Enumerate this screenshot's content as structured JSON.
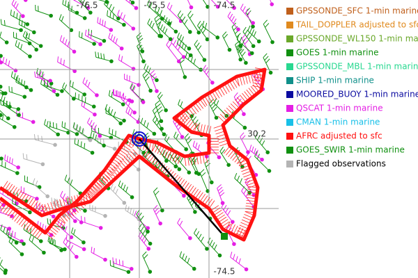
{
  "map": {
    "grid_labels": {
      "top": [
        "-76.5",
        "-75.5",
        "-74.5"
      ],
      "right": "30.2",
      "bottom": "-74.5"
    },
    "legend": [
      {
        "label": "GPSSONDE_SFC 1-min marine",
        "color": "#c0601c",
        "text_color": "#c0601c"
      },
      {
        "label": "TAIL_DOPPLER adjusted to sfc",
        "color": "#e08a1e",
        "text_color": "#e08a1e"
      },
      {
        "label": "GPSSONDE_WL150 1-min marine",
        "color": "#6aa82a",
        "text_color": "#6aa82a"
      },
      {
        "label": "GOES 1-min marine",
        "color": "#109010",
        "text_color": "#109010"
      },
      {
        "label": "GPSSONDE_MBL 1-min marine",
        "color": "#28d890",
        "text_color": "#28d890"
      },
      {
        "label": "SHIP 1-min marine",
        "color": "#10908a",
        "text_color": "#10908a"
      },
      {
        "label": "MOORED_BUOY 1-min marine",
        "color": "#0a0aa0",
        "text_color": "#0a0aa0"
      },
      {
        "label": "QSCAT 1-min marine",
        "color": "#e41ee4",
        "text_color": "#e41ee4"
      },
      {
        "label": "CMAN 1-min marine",
        "color": "#18c0e8",
        "text_color": "#18c0e8"
      },
      {
        "label": "AFRC adjusted to sfc",
        "color": "#ff1010",
        "text_color": "#ff1010"
      },
      {
        "label": "GOES_SWIR 1-min marine",
        "color": "#109010",
        "text_color": "#109010"
      },
      {
        "label": "Flagged observations",
        "color": "#b4b4b4",
        "text_color": "#000000"
      }
    ]
  }
}
